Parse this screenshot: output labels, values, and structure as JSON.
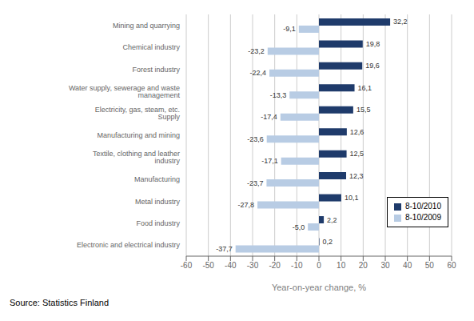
{
  "chart_data": {
    "type": "bar",
    "orientation": "horizontal",
    "categories": [
      "Electronic and electrical industry",
      "Food industry",
      "Metal industry",
      "Manufacturing",
      "Textile, clothing and leather industry",
      "Manufacturing and mining",
      "Electricity, gas, steam, etc. Supply",
      "Water supply, sewerage and waste management",
      "Forest industry",
      "Chemical industry",
      "Mining and quarrying"
    ],
    "series": [
      {
        "name": "8-10/2010",
        "color": "#1F3B6B",
        "values": [
          0.2,
          2.2,
          10.1,
          12.3,
          12.5,
          12.6,
          15.5,
          16.1,
          19.6,
          19.8,
          32.2
        ],
        "value_labels": [
          "0,2",
          "2,2",
          "10,1",
          "12,3",
          "12,5",
          "12,6",
          "15,5",
          "16,1",
          "19,6",
          "19,8",
          "32,2"
        ]
      },
      {
        "name": "8-10/2009",
        "color": "#B8CCE4",
        "values": [
          -37.7,
          -5.0,
          -27.8,
          -23.7,
          -17.1,
          -23.6,
          -17.4,
          -13.3,
          -22.4,
          -23.2,
          -9.1
        ],
        "value_labels": [
          "-37,7",
          "-5,0",
          "-27,8",
          "-23,7",
          "-17,1",
          "-23,6",
          "-17,4",
          "-13,3",
          "-22,4",
          "-23,2",
          "-9,1"
        ]
      }
    ],
    "xlabel": "Year-on-year change, %",
    "xlim": [
      -60,
      60
    ],
    "xticks": [
      -60,
      -50,
      -40,
      -30,
      -20,
      -10,
      0,
      10,
      20,
      30,
      40,
      50,
      60
    ],
    "grid": true,
    "legend": "lower right",
    "data_labels": true,
    "source": "Source: Statistics Finland"
  }
}
